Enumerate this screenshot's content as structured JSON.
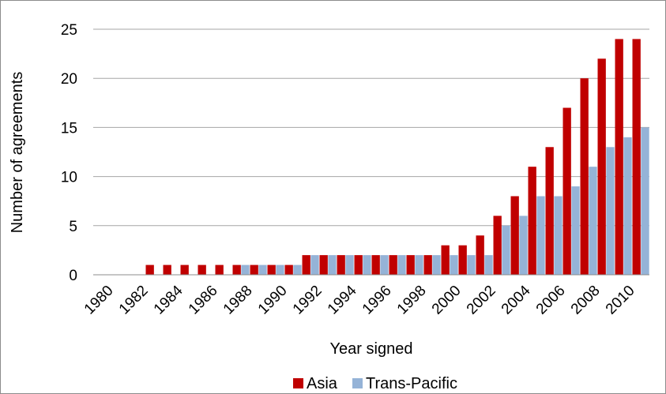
{
  "chart_data": {
    "type": "bar",
    "xlabel": "Year signed",
    "ylabel": "Number of agreements",
    "ylim": [
      0,
      25
    ],
    "yticks": [
      0,
      5,
      10,
      15,
      20,
      25
    ],
    "grid": "horizontal",
    "legend_position": "bottom",
    "categories": [
      "1980",
      "1981",
      "1982",
      "1983",
      "1984",
      "1985",
      "1986",
      "1987",
      "1988",
      "1989",
      "1990",
      "1991",
      "1992",
      "1993",
      "1994",
      "1995",
      "1996",
      "1997",
      "1998",
      "1999",
      "2000",
      "2001",
      "2002",
      "2003",
      "2004",
      "2005",
      "2006",
      "2007",
      "2008",
      "2009",
      "2010",
      "2011"
    ],
    "x_tick_labels": [
      "1980",
      "1982",
      "1984",
      "1986",
      "1988",
      "1990",
      "1992",
      "1994",
      "1996",
      "1998",
      "2000",
      "2002",
      "2004",
      "2006",
      "2008",
      "2010"
    ],
    "series": [
      {
        "name": "Asia",
        "color": "#C00000",
        "values": [
          0,
          0,
          0,
          1,
          1,
          1,
          1,
          1,
          1,
          1,
          1,
          1,
          2,
          2,
          2,
          2,
          2,
          2,
          2,
          2,
          3,
          3,
          4,
          6,
          8,
          11,
          13,
          17,
          20,
          22,
          24,
          24
        ]
      },
      {
        "name": "Trans-Pacific",
        "color": "#95B3D7",
        "values": [
          0,
          0,
          0,
          0,
          0,
          0,
          0,
          0,
          1,
          1,
          1,
          1,
          2,
          2,
          2,
          2,
          2,
          2,
          2,
          2,
          2,
          2,
          2,
          5,
          6,
          8,
          8,
          9,
          11,
          13,
          14,
          15
        ]
      }
    ]
  }
}
